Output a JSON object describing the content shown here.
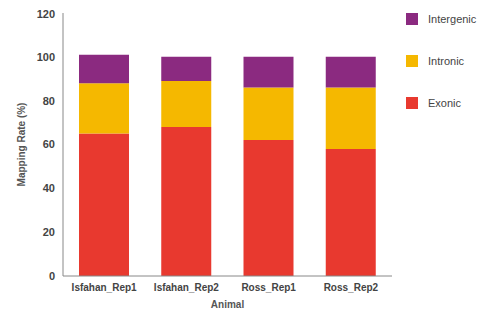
{
  "chart_data": {
    "type": "bar",
    "stacked": true,
    "x_label": "Animal",
    "y_label": "Mapping Rate (%)",
    "categories": [
      "Isfahan_Rep1",
      "Isfahan_Rep2",
      "Ross_Rep1",
      "Ross_Rep2"
    ],
    "series": [
      {
        "name": "Exonic",
        "color": "#e8392f",
        "values": [
          65,
          68,
          62,
          58
        ]
      },
      {
        "name": "Intronic",
        "color": "#f5b800",
        "values": [
          23,
          21,
          24,
          28
        ]
      },
      {
        "name": "Intergenic",
        "color": "#8b2a80",
        "values": [
          13,
          11,
          14,
          14
        ]
      }
    ],
    "ylim": [
      0,
      120
    ],
    "yticks": [
      0,
      20,
      40,
      60,
      80,
      100,
      120
    ],
    "grid": false,
    "legend": "right"
  }
}
